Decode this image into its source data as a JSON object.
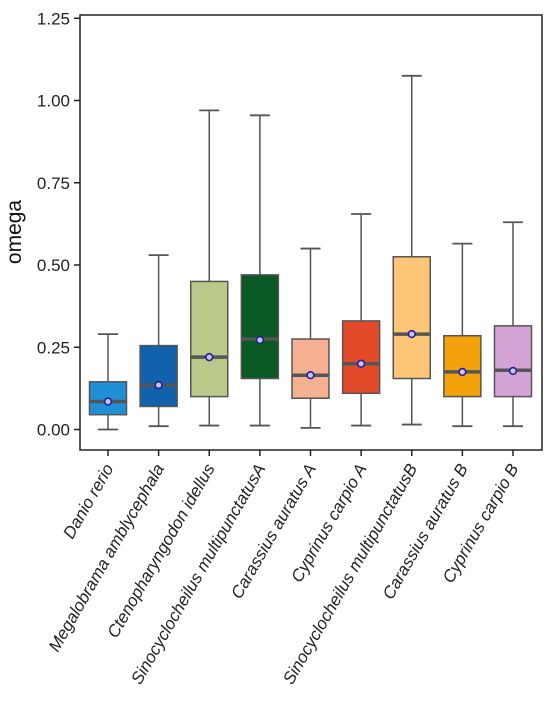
{
  "chart_data": {
    "type": "boxplot",
    "ylabel": "omega",
    "ylim": [
      -0.05,
      1.26
    ],
    "yticks": [
      0.0,
      0.25,
      0.5,
      0.75,
      1.0,
      1.25
    ],
    "ytick_labels": [
      "0.00",
      "0.25",
      "0.50",
      "0.75",
      "1.00",
      "1.25"
    ],
    "grid": false,
    "categories": [
      "Danio rerio",
      "Megalobrama amblycephala",
      "Ctenopharyngodon idellus",
      "Sinocyclocheilus multipunctatusA",
      "Carassius auratus A",
      "Cyprinus carpio A",
      "Sinocyclocheilus multipunctatusB",
      "Carassius auratus B",
      "Cyprinus carpio B"
    ],
    "boxes": [
      {
        "min": 0.0,
        "q1": 0.045,
        "median": 0.085,
        "q3": 0.145,
        "max": 0.29,
        "mean": 0.085,
        "color": "#1f8fd6"
      },
      {
        "min": 0.01,
        "q1": 0.07,
        "median": 0.135,
        "q3": 0.255,
        "max": 0.53,
        "mean": 0.135,
        "color": "#1261ad"
      },
      {
        "min": 0.012,
        "q1": 0.1,
        "median": 0.22,
        "q3": 0.45,
        "max": 0.97,
        "mean": 0.22,
        "color": "#b9c98a"
      },
      {
        "min": 0.012,
        "q1": 0.155,
        "median": 0.275,
        "q3": 0.47,
        "max": 0.955,
        "mean": 0.272,
        "color": "#0b5a25"
      },
      {
        "min": 0.005,
        "q1": 0.095,
        "median": 0.165,
        "q3": 0.275,
        "max": 0.55,
        "mean": 0.165,
        "color": "#f5b092"
      },
      {
        "min": 0.012,
        "q1": 0.11,
        "median": 0.2,
        "q3": 0.33,
        "max": 0.655,
        "mean": 0.2,
        "color": "#e24a2a"
      },
      {
        "min": 0.015,
        "q1": 0.155,
        "median": 0.29,
        "q3": 0.525,
        "max": 1.075,
        "mean": 0.29,
        "color": "#fcc676"
      },
      {
        "min": 0.01,
        "q1": 0.1,
        "median": 0.175,
        "q3": 0.285,
        "max": 0.565,
        "mean": 0.175,
        "color": "#f4a20c"
      },
      {
        "min": 0.01,
        "q1": 0.1,
        "median": 0.18,
        "q3": 0.315,
        "max": 0.63,
        "mean": 0.178,
        "color": "#d2a3d4"
      }
    ],
    "styles": {
      "box_outline": "#555555",
      "whisker": "#555555",
      "median_line": "#555555",
      "mean_marker_fill": "#c8c4e6",
      "mean_marker_stroke": "#1f1fa0"
    }
  }
}
